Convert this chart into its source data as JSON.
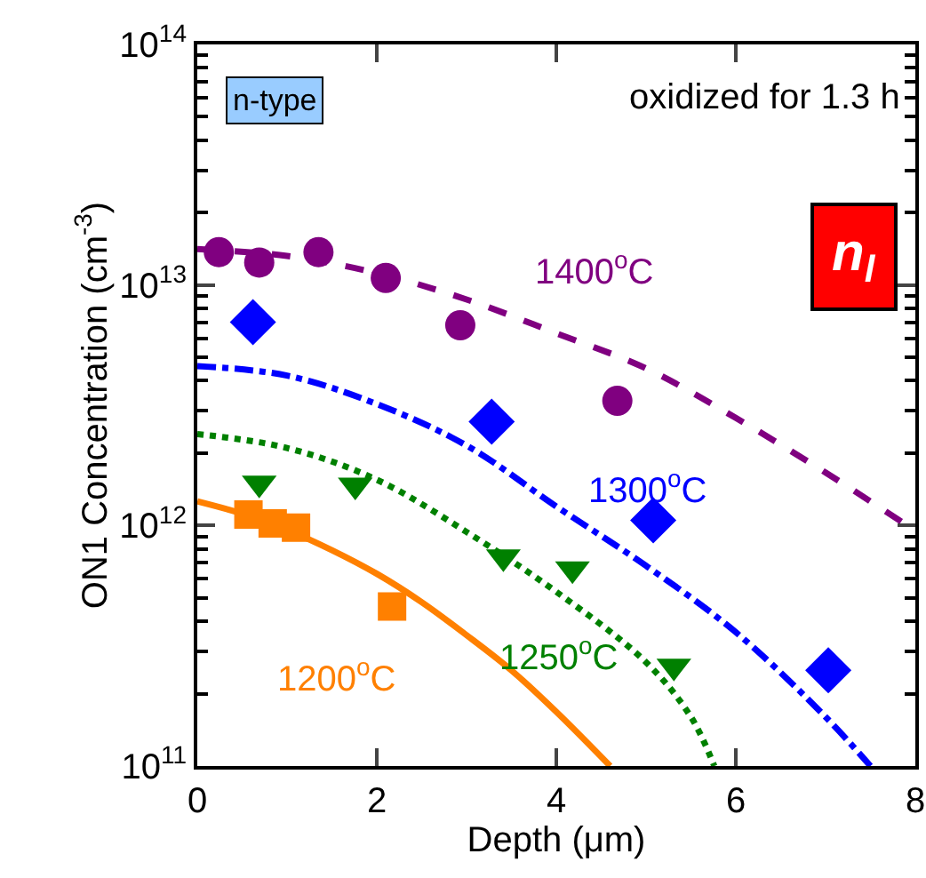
{
  "chart_data": {
    "type": "scatter",
    "xlabel": "Depth (μm)",
    "ylabel": "ON1 Concentration (cm$^{-3}$)",
    "log": "y",
    "grid": false,
    "legend": false,
    "xlim": [
      0,
      8
    ],
    "xticks": [
      0,
      2,
      4,
      6,
      8
    ],
    "ylim": [
      100000000000.0,
      100000000000000.0
    ],
    "yticks": [
      {
        "value": 100000000000.0,
        "label": "10$^{11}$"
      },
      {
        "value": 1000000000000.0,
        "label": "10$^{12}$"
      },
      {
        "value": 10000000000000.0,
        "label": "10$^{13}$"
      },
      {
        "value": 100000000000000.0,
        "label": "10$^{14}$"
      }
    ],
    "series": [
      {
        "color": "#800080",
        "marker": "circle",
        "x": [
          0.24,
          0.69,
          1.35,
          2.1,
          2.93,
          4.68
        ],
        "values": [
          13700000000000.0,
          12400000000000.0,
          13700000000000.0,
          10700000000000.0,
          6800000000000.0,
          3300000000000.0
        ]
      },
      {
        "color": "#0000ff",
        "marker": "diamond",
        "x": [
          0.62,
          3.28,
          5.08,
          7.03
        ],
        "values": [
          7000000000000.0,
          2700000000000.0,
          1050000000000.0,
          250000000000.0
        ]
      },
      {
        "color": "#008000",
        "marker": "triangle",
        "x": [
          0.69,
          1.76,
          3.41,
          4.18,
          5.31
        ],
        "values": [
          1500000000000.0,
          1470000000000.0,
          740000000000.0,
          660000000000.0,
          260000000000.0
        ]
      },
      {
        "color": "#ff8000",
        "marker": "square",
        "x": [
          0.57,
          0.84,
          1.1,
          2.17
        ],
        "values": [
          1110000000000.0,
          1020000000000.0,
          980000000000.0,
          460000000000.0
        ]
      },
      {
        "type": "line",
        "color": "#800080",
        "line_style": "dashed",
        "x": [
          0,
          1,
          2,
          3,
          4,
          5,
          6,
          7,
          8
        ],
        "values": [
          14100000000000.0,
          13200000000000.0,
          11200000000000.0,
          8700000000000.0,
          6300000000000.0,
          4500000000000.0,
          2800000000000.0,
          1660000000000.0,
          950000000000.0
        ]
      },
      {
        "type": "line",
        "color": "#0000ff",
        "line_style": "dashdot",
        "x": [
          0,
          1,
          2,
          3,
          4,
          5,
          6,
          7,
          7.5
        ],
        "values": [
          4600000000000.0,
          4200000000000.0,
          3200000000000.0,
          2150000000000.0,
          1200000000000.0,
          680000000000.0,
          360000000000.0,
          160000000000.0,
          100000000000.0
        ]
      },
      {
        "type": "line",
        "color": "#008000",
        "line_style": "dotted",
        "x": [
          0,
          1,
          2,
          3,
          4,
          5,
          5.5,
          5.76
        ],
        "values": [
          2400000000000.0,
          2100000000000.0,
          1550000000000.0,
          940000000000.0,
          530000000000.0,
          270000000000.0,
          160000000000.0,
          100000000000.0
        ]
      },
      {
        "type": "line",
        "color": "#ff8000",
        "line_style": "solid",
        "x": [
          0,
          0.5,
          1,
          1.5,
          2,
          2.5,
          3,
          3.5,
          4,
          4.6
        ],
        "values": [
          1260000000000.0,
          1120000000000.0,
          960000000000.0,
          790000000000.0,
          630000000000.0,
          480000000000.0,
          350000000000.0,
          250000000000.0,
          168000000000.0,
          100000000000.0
        ]
      }
    ],
    "annotations": [
      "1400$^{o}$C",
      "1300$^{o}$C",
      "1250$^{o}$C",
      "1200$^{o}$C",
      "n-type",
      "oxidized for 1.3 h",
      "n$_{l}$"
    ]
  }
}
